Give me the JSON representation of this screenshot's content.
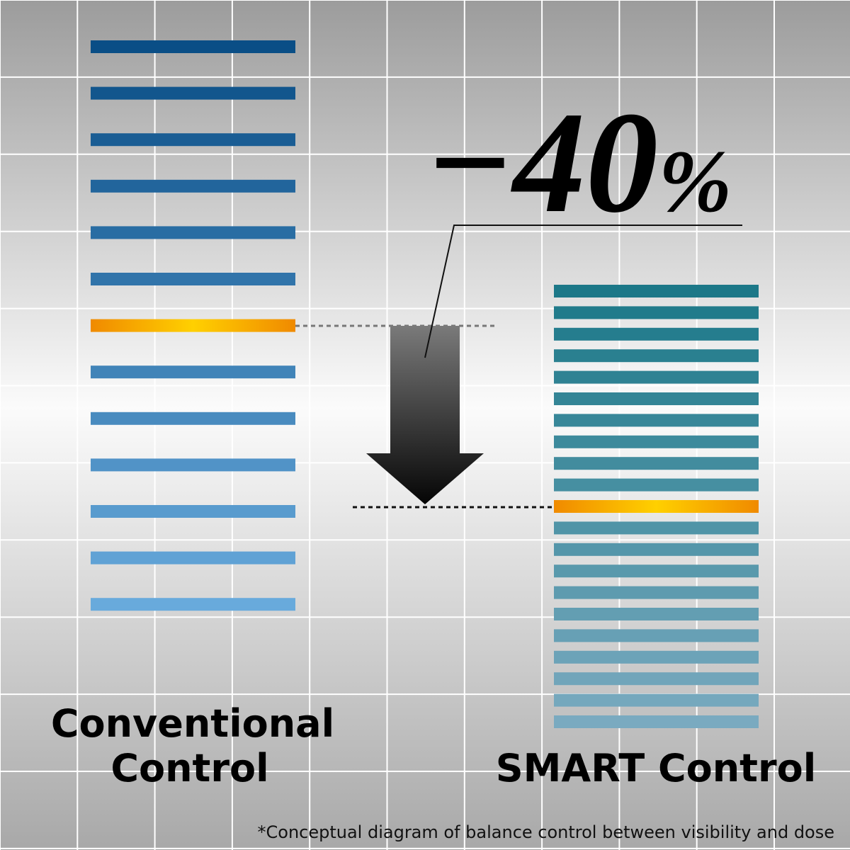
{
  "reduction": {
    "number": "−40",
    "unit": "%"
  },
  "left_label": {
    "line1": "Conventional",
    "line2": "Control"
  },
  "right_label": "SMART Control",
  "footnote": "*Conceptual diagram of balance control between visibility and dose"
}
